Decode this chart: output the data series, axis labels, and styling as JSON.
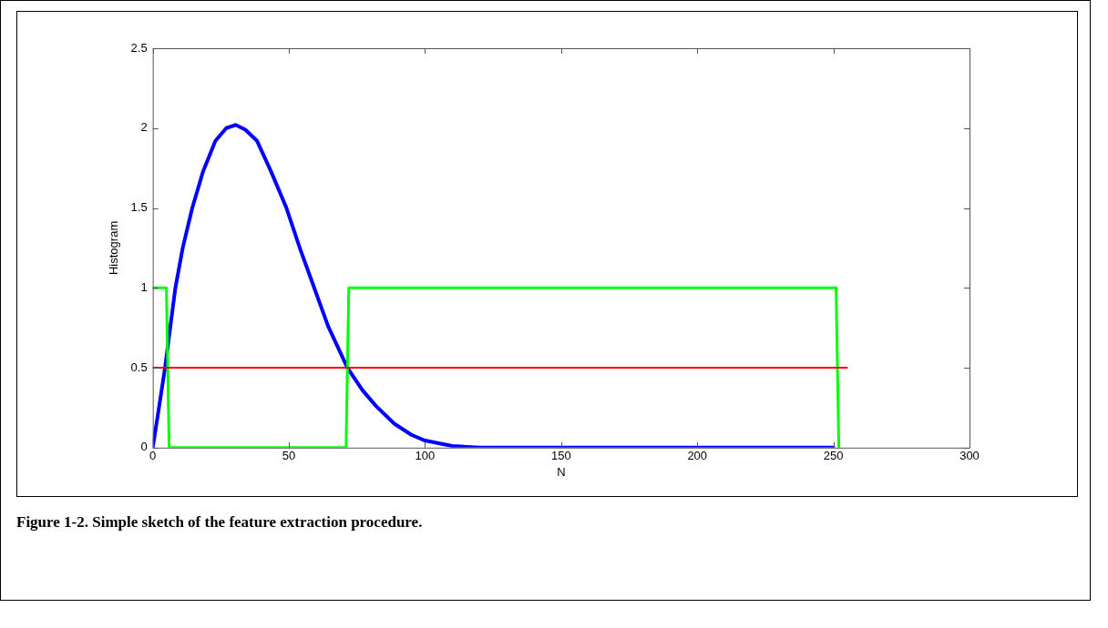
{
  "chart_data": {
    "type": "line",
    "xlabel": "N",
    "ylabel": "Histogram",
    "annotations": [
      "Figure 1-2. Simple sketch of the feature extraction procedure."
    ],
    "xlim": [
      0,
      300
    ],
    "xticks": [
      0,
      50,
      100,
      150,
      200,
      250,
      300
    ],
    "ylim": [
      0,
      2.5
    ],
    "yticks": [
      0,
      0.5,
      1,
      1.5,
      2,
      2.5
    ],
    "grid": false,
    "legend": false,
    "marker": "none",
    "line_style": "solid",
    "series": [
      {
        "color": "#ff0000",
        "x": [
          0,
          255
        ],
        "values": [
          0.5,
          0.5
        ]
      },
      {
        "color": "#00ff00",
        "x": [
          0,
          5,
          6,
          71,
          72,
          251,
          252
        ],
        "values": [
          1,
          1,
          0,
          0,
          1,
          1,
          0
        ]
      },
      {
        "color": "#0000ff",
        "x": [
          0,
          2,
          4.5,
          8.3,
          11,
          14.5,
          18.5,
          23,
          27,
          30.5,
          34,
          38.3,
          43.4,
          49.1,
          54.2,
          59.3,
          64.4,
          71.5,
          77,
          82,
          88.7,
          95,
          100,
          110,
          120,
          150,
          200,
          250
        ],
        "values": [
          0,
          0.22,
          0.5,
          1.0,
          1.25,
          1.5,
          1.73,
          1.92,
          2.0,
          2.02,
          1.99,
          1.92,
          1.73,
          1.5,
          1.24,
          1.0,
          0.76,
          0.5,
          0.36,
          0.26,
          0.15,
          0.08,
          0.044,
          0.01,
          0,
          0,
          0,
          0
        ]
      }
    ]
  }
}
